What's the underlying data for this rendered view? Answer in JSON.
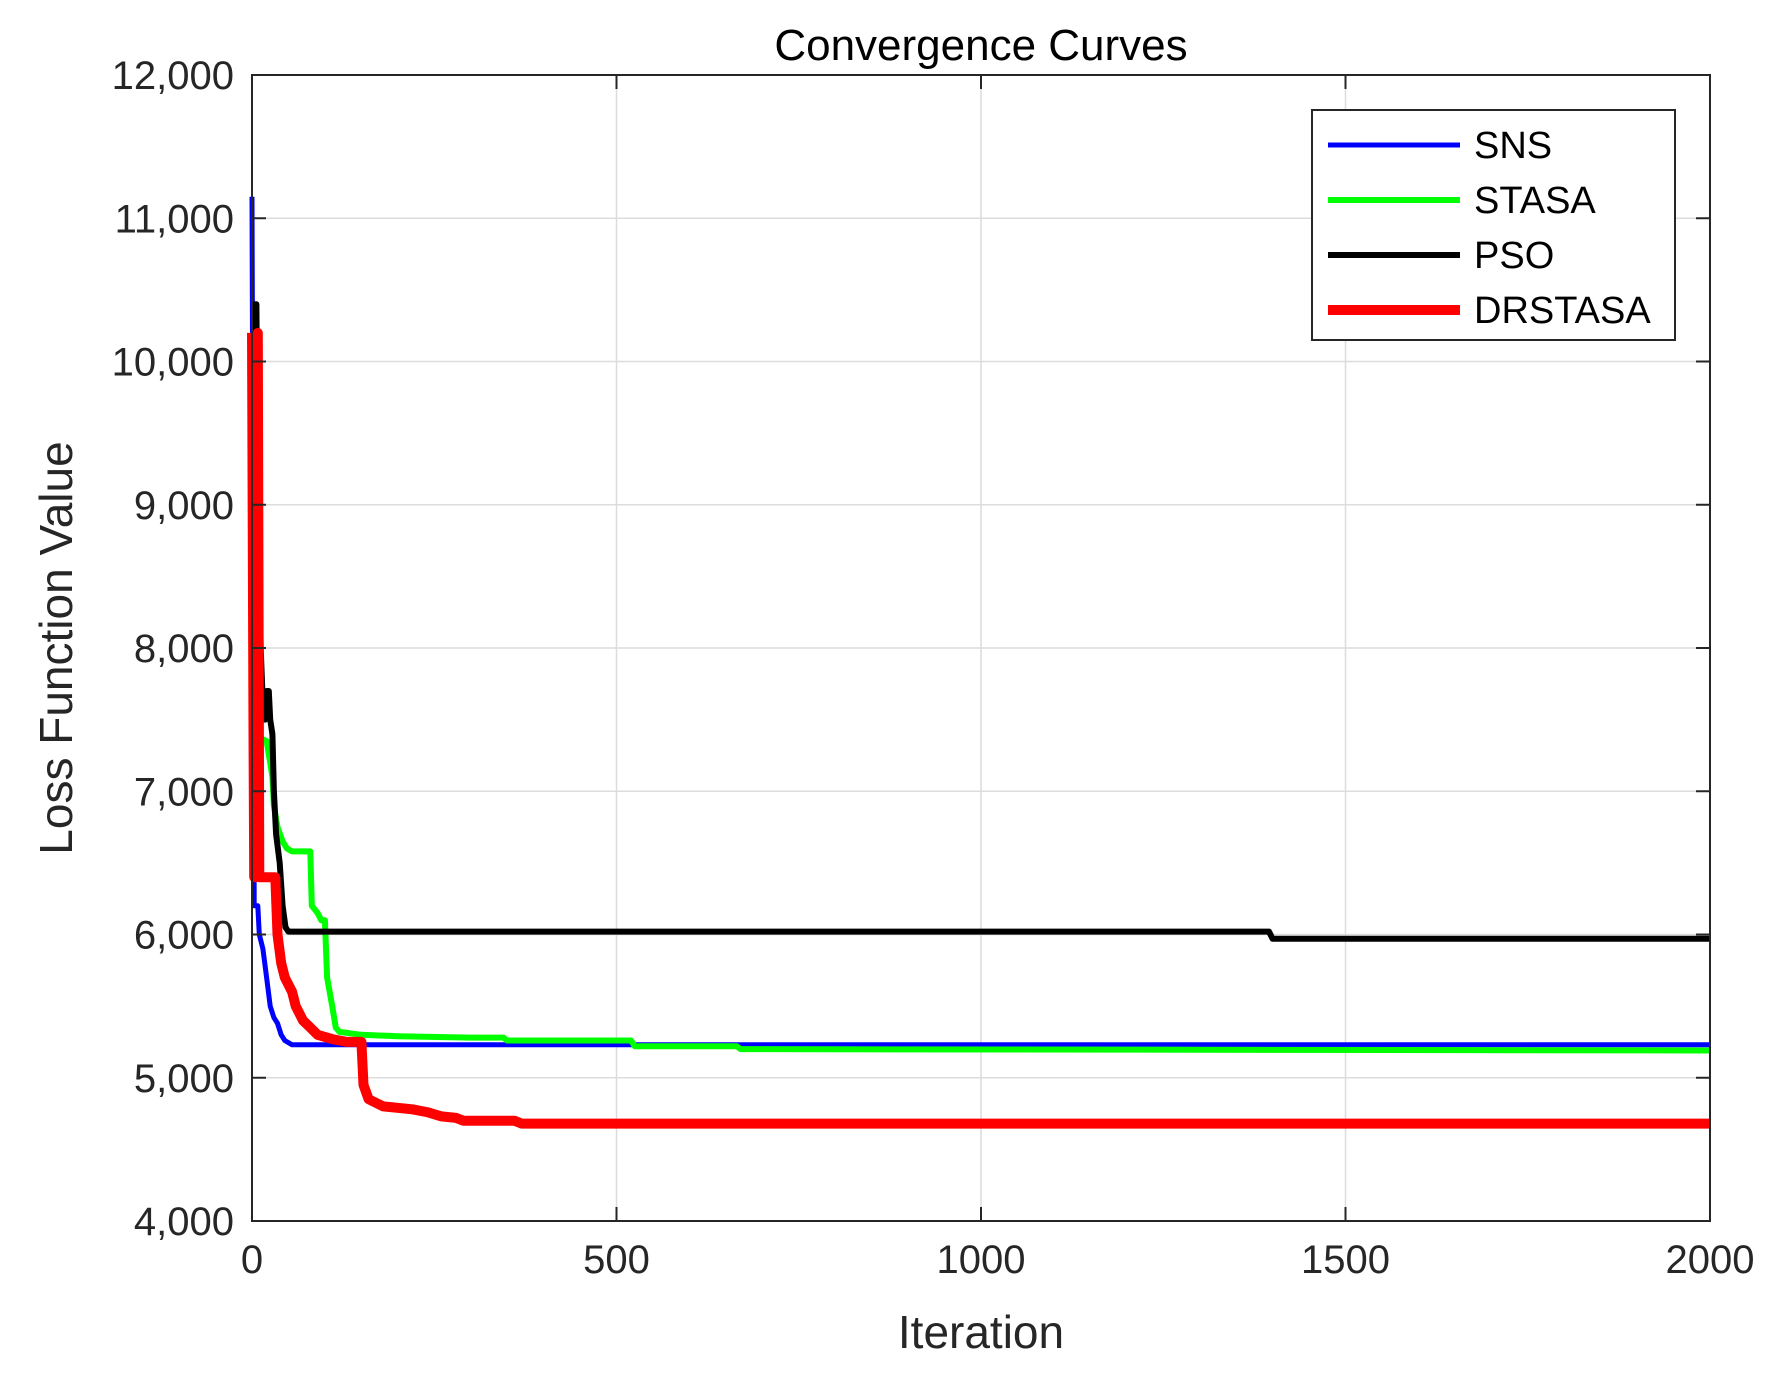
{
  "chart_data": {
    "type": "line",
    "title": "Convergence Curves",
    "xlabel": "Iteration",
    "ylabel": "Loss Function Value",
    "xlim": [
      0,
      2000
    ],
    "ylim": [
      4000,
      12000
    ],
    "xticks": [
      0,
      500,
      1000,
      1500,
      2000
    ],
    "xtick_labels": [
      "0",
      "500",
      "1000",
      "1500",
      "2000"
    ],
    "yticks": [
      4000,
      5000,
      6000,
      7000,
      8000,
      9000,
      10000,
      11000,
      12000
    ],
    "ytick_labels": [
      "4,000",
      "5,000",
      "6,000",
      "7,000",
      "8,000",
      "9,000",
      "10,000",
      "11,000",
      "12,000"
    ],
    "grid": true,
    "legend_position": "top-right",
    "series": [
      {
        "name": "SNS",
        "color": "#0000ff",
        "points": [
          [
            0,
            11150
          ],
          [
            2,
            8000
          ],
          [
            3,
            6200
          ],
          [
            8,
            6200
          ],
          [
            10,
            6000
          ],
          [
            15,
            5900
          ],
          [
            20,
            5700
          ],
          [
            25,
            5500
          ],
          [
            30,
            5420
          ],
          [
            35,
            5380
          ],
          [
            40,
            5300
          ],
          [
            45,
            5260
          ],
          [
            55,
            5230
          ],
          [
            200,
            5230
          ],
          [
            2000,
            5230
          ]
        ]
      },
      {
        "name": "STASA",
        "color": "#00ff00",
        "points": [
          [
            0,
            7400
          ],
          [
            20,
            7350
          ],
          [
            25,
            7200
          ],
          [
            28,
            7100
          ],
          [
            30,
            6900
          ],
          [
            35,
            6750
          ],
          [
            42,
            6650
          ],
          [
            48,
            6600
          ],
          [
            55,
            6580
          ],
          [
            80,
            6580
          ],
          [
            82,
            6200
          ],
          [
            90,
            6150
          ],
          [
            95,
            6100
          ],
          [
            100,
            6100
          ],
          [
            103,
            5700
          ],
          [
            110,
            5500
          ],
          [
            115,
            5350
          ],
          [
            120,
            5320
          ],
          [
            150,
            5300
          ],
          [
            200,
            5290
          ],
          [
            300,
            5280
          ],
          [
            345,
            5280
          ],
          [
            350,
            5260
          ],
          [
            520,
            5260
          ],
          [
            525,
            5220
          ],
          [
            665,
            5220
          ],
          [
            670,
            5200
          ],
          [
            2000,
            5190
          ]
        ]
      },
      {
        "name": "PSO",
        "color": "#000000",
        "points": [
          [
            0,
            9500
          ],
          [
            4,
            10400
          ],
          [
            6,
            10400
          ],
          [
            8,
            9200
          ],
          [
            10,
            8500
          ],
          [
            12,
            8000
          ],
          [
            15,
            7600
          ],
          [
            18,
            7500
          ],
          [
            20,
            7700
          ],
          [
            23,
            7700
          ],
          [
            25,
            7500
          ],
          [
            28,
            7400
          ],
          [
            30,
            7000
          ],
          [
            33,
            6700
          ],
          [
            38,
            6500
          ],
          [
            42,
            6200
          ],
          [
            46,
            6050
          ],
          [
            50,
            6020
          ],
          [
            400,
            6020
          ],
          [
            1395,
            6020
          ],
          [
            1400,
            5970
          ],
          [
            2000,
            5970
          ]
        ]
      },
      {
        "name": "DRSTASA",
        "color": "#ff0000",
        "points": [
          [
            0,
            10200
          ],
          [
            2,
            7400
          ],
          [
            3,
            6400
          ],
          [
            5,
            6400
          ],
          [
            8,
            10200
          ],
          [
            10,
            6400
          ],
          [
            32,
            6400
          ],
          [
            35,
            6000
          ],
          [
            40,
            5800
          ],
          [
            45,
            5700
          ],
          [
            55,
            5600
          ],
          [
            60,
            5500
          ],
          [
            70,
            5400
          ],
          [
            80,
            5350
          ],
          [
            90,
            5300
          ],
          [
            110,
            5270
          ],
          [
            130,
            5250
          ],
          [
            150,
            5250
          ],
          [
            153,
            4950
          ],
          [
            160,
            4850
          ],
          [
            180,
            4800
          ],
          [
            220,
            4780
          ],
          [
            240,
            4760
          ],
          [
            260,
            4730
          ],
          [
            280,
            4720
          ],
          [
            290,
            4700
          ],
          [
            360,
            4700
          ],
          [
            370,
            4680
          ],
          [
            2000,
            4680
          ]
        ]
      }
    ]
  }
}
